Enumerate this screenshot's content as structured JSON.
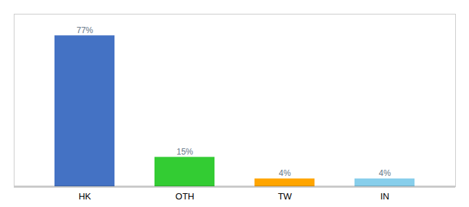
{
  "chart_data": {
    "type": "bar",
    "categories": [
      "HK",
      "OTH",
      "TW",
      "IN"
    ],
    "values": [
      77,
      15,
      4,
      4
    ],
    "value_labels": [
      "77%",
      "15%",
      "4%",
      "4%"
    ],
    "colors": [
      "#4472C4",
      "#33CC33",
      "#FFA500",
      "#87CEEB"
    ],
    "ylim": [
      0,
      88
    ],
    "data_labels": true,
    "tick_labels": "x"
  }
}
